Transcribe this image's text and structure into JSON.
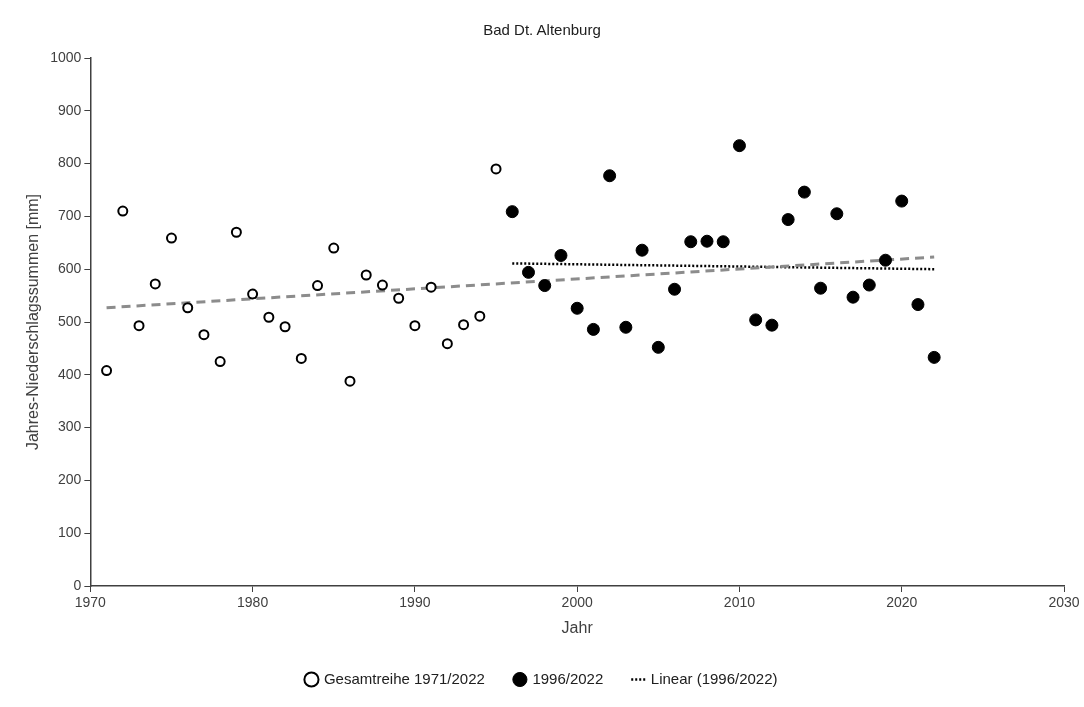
{
  "chart_data": {
    "type": "scatter",
    "title": "Bad Dt. Altenburg",
    "xlabel": "Jahr",
    "ylabel": "Jahres-Niederschlagssummen [mm]",
    "xlim": [
      1970,
      2030
    ],
    "xticks": [
      1970,
      1980,
      1990,
      2000,
      2010,
      2020,
      2030
    ],
    "ylim": [
      0,
      1000
    ],
    "yticks": [
      0,
      100,
      200,
      300,
      400,
      500,
      600,
      700,
      800,
      900,
      1000
    ],
    "grid": false,
    "legend": "bottom",
    "series": [
      {
        "name": "Gesamtreihe 1971/2022",
        "marker": "circle",
        "color": "#000000",
        "x": [
          1971,
          1972,
          1973,
          1974,
          1975,
          1976,
          1977,
          1978,
          1979,
          1980,
          1981,
          1982,
          1983,
          1984,
          1985,
          1986,
          1987,
          1988,
          1989,
          1990,
          1991,
          1992,
          1993,
          1994,
          1995
        ],
        "values": [
          408,
          710,
          493,
          572,
          659,
          527,
          476,
          425,
          670,
          553,
          509,
          491,
          431,
          569,
          640,
          388,
          589,
          570,
          545,
          493,
          566,
          459,
          495,
          511,
          790
        ]
      },
      {
        "name": "1996/2022",
        "marker": "circle",
        "color": "#000000",
        "x": [
          1996,
          1997,
          1998,
          1999,
          2000,
          2001,
          2002,
          2003,
          2004,
          2005,
          2006,
          2007,
          2008,
          2009,
          2010,
          2011,
          2012,
          2013,
          2014,
          2015,
          2016,
          2017,
          2018,
          2019,
          2020,
          2021,
          2022
        ],
        "values": [
          709,
          594,
          569,
          626,
          526,
          486,
          777,
          490,
          636,
          452,
          562,
          652,
          653,
          652,
          834,
          504,
          494,
          694,
          746,
          564,
          705,
          547,
          570,
          617,
          729,
          533,
          433
        ]
      },
      {
        "type": "line",
        "marker": "none",
        "line_style": "dashed",
        "color": "#8c8c8c",
        "x": [
          1971,
          2022
        ],
        "values": [
          527,
          623
        ]
      },
      {
        "name": "Linear (1996/2022)",
        "type": "line",
        "marker": "none",
        "line_style": "dotted",
        "color": "#000000",
        "x": [
          1996,
          2022
        ],
        "values": [
          611,
          600
        ]
      }
    ]
  }
}
